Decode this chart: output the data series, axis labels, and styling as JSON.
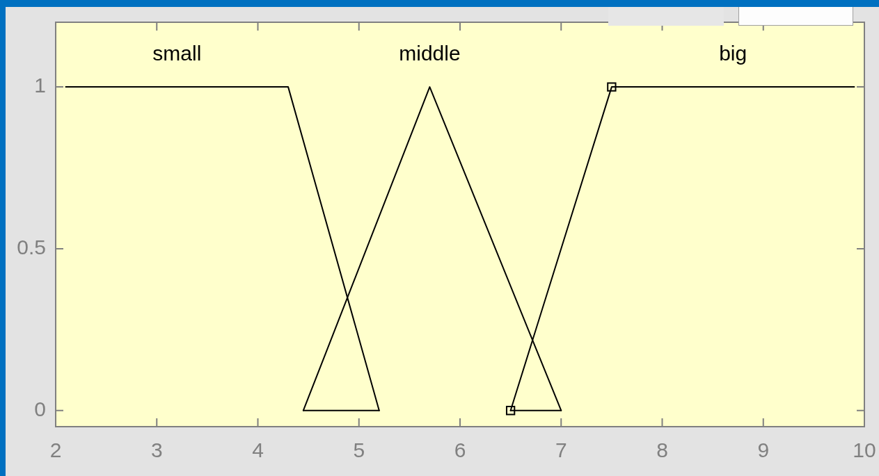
{
  "chart_data": {
    "type": "line",
    "xlim": [
      2,
      10
    ],
    "xticks": [
      2,
      3,
      4,
      5,
      6,
      7,
      8,
      9,
      10
    ],
    "ylim": [
      -0.05,
      1.2
    ],
    "yticks": [
      0,
      0.5,
      1
    ],
    "series": [
      {
        "name": "small",
        "color": "#000000",
        "x": [
          2.1,
          4.3,
          5.2
        ],
        "values": [
          1,
          1,
          0
        ]
      },
      {
        "name": "middle",
        "color": "#000000",
        "x": [
          4.45,
          5.7,
          7.0
        ],
        "values": [
          0,
          1,
          0
        ]
      },
      {
        "name": "big",
        "color": "#000000",
        "x": [
          6.5,
          7.5,
          9.9
        ],
        "values": [
          0,
          1,
          1
        ]
      },
      {
        "color": "#000000",
        "x": [
          4.45,
          5.2
        ],
        "values": [
          0,
          0
        ]
      },
      {
        "color": "#000000",
        "x": [
          6.5,
          7.0
        ],
        "values": [
          0,
          0
        ]
      },
      {
        "type": "scatter",
        "color": "#000000",
        "marker": "square",
        "x": [
          6.5,
          7.5
        ],
        "values": [
          0,
          1
        ]
      }
    ]
  }
}
